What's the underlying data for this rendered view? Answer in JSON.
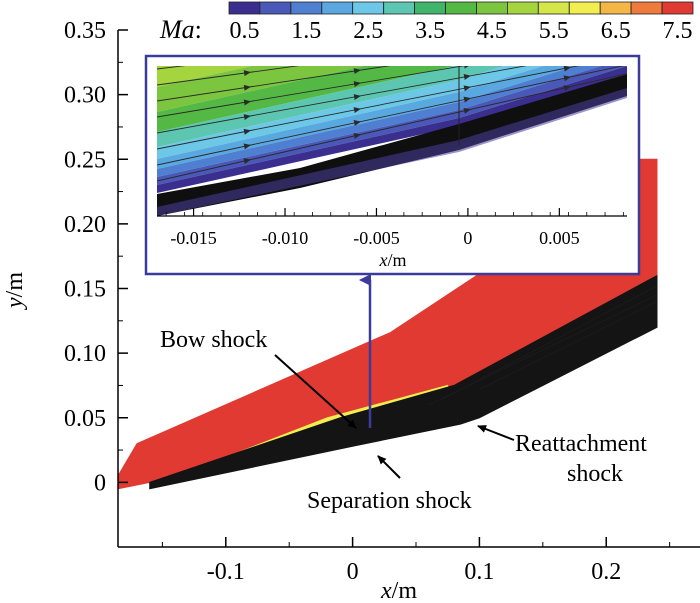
{
  "chart_data": {
    "type": "contour",
    "title": "",
    "colorbar": {
      "label": "Ma",
      "separator": ":",
      "tick_labels": [
        "0.5",
        "1.5",
        "2.5",
        "3.5",
        "4.5",
        "5.5",
        "6.5",
        "7.5"
      ],
      "levels": [
        0.5,
        1.0,
        1.5,
        2.0,
        2.5,
        3.0,
        3.5,
        4.0,
        4.5,
        5.0,
        5.5,
        6.0,
        6.5,
        7.0,
        7.5
      ],
      "colors": [
        "#3a2f8f",
        "#4a58b8",
        "#4f7fd0",
        "#5aa8e0",
        "#6cc8e6",
        "#5cc6b0",
        "#3fb56c",
        "#53b944",
        "#7cc63f",
        "#a4d43e",
        "#d4e64a",
        "#f2ee52",
        "#f4b646",
        "#ee7a3e",
        "#e03a33"
      ]
    },
    "main_plot": {
      "xlabel": "x",
      "xunit": "/m",
      "ylabel": "y",
      "yunit": "/m",
      "xlim": [
        -0.185,
        0.27
      ],
      "ylim": [
        -0.05,
        0.35
      ],
      "xticks": [
        -0.1,
        0,
        0.1,
        0.2
      ],
      "xtick_labels": [
        "-0.1",
        "0",
        "0.1",
        "0.2"
      ],
      "yticks": [
        0,
        0.05,
        0.1,
        0.15,
        0.2,
        0.25,
        0.3,
        0.35
      ],
      "ytick_labels": [
        "0",
        "0.05",
        "0.10",
        "0.15",
        "0.20",
        "0.25",
        "0.30",
        "0.35"
      ],
      "regions": [
        {
          "name": "freestream-region",
          "mach": 7.5,
          "color": "#e03a33",
          "points": [
            [
              -0.185,
              0.005
            ],
            [
              -0.17,
              0.03
            ],
            [
              0.03,
              0.116
            ],
            [
              0.175,
              0.21
            ],
            [
              0.215,
              0.21
            ],
            [
              0.215,
              0.25
            ],
            [
              0.24,
              0.25
            ],
            [
              0.24,
              0.16
            ],
            [
              0.08,
              0.075
            ],
            [
              -0.01,
              0.05
            ],
            [
              -0.16,
              0.0
            ],
            [
              -0.185,
              -0.005
            ]
          ]
        },
        {
          "name": "separation-bubble-region",
          "mach": 5.5,
          "color": "#f2ee52",
          "points": [
            [
              -0.13,
              0.008
            ],
            [
              -0.02,
              0.05
            ],
            [
              0.075,
              0.075
            ],
            [
              0.075,
              0.062
            ],
            [
              0.02,
              0.038
            ],
            [
              -0.13,
              0.004
            ]
          ]
        },
        {
          "name": "reattachment-region",
          "mach": 4.5,
          "color": "#7cc63f",
          "points": [
            [
              0.06,
              0.058
            ],
            [
              0.09,
              0.075
            ],
            [
              0.24,
              0.16
            ],
            [
              0.24,
              0.135
            ],
            [
              0.1,
              0.07
            ]
          ]
        },
        {
          "name": "boundary-layer-region",
          "mach": 0.5,
          "color": "#141414",
          "points": [
            [
              -0.16,
              0.0
            ],
            [
              -0.01,
              0.05
            ],
            [
              0.08,
              0.075
            ],
            [
              0.24,
              0.16
            ],
            [
              0.24,
              0.12
            ],
            [
              0.1,
              0.05
            ],
            [
              0.085,
              0.045
            ],
            [
              0.0,
              0.028
            ],
            [
              -0.16,
              -0.005
            ]
          ]
        }
      ],
      "annotations": [
        {
          "text": "Bow shock",
          "tip": [
            0.055,
            0.066
          ]
        },
        {
          "text": "Separation shock",
          "tip": [
            0.03,
            0.02
          ]
        },
        {
          "text_lines": [
            "Reattachment",
            "shock"
          ],
          "tip": [
            0.085,
            0.05
          ]
        }
      ]
    },
    "inset": {
      "xlabel": "x",
      "xunit": "/m",
      "xlim": [
        -0.017,
        0.0087
      ],
      "xticks": [
        -0.015,
        -0.01,
        -0.005,
        0,
        0.005
      ],
      "xtick_labels": [
        "-0.015",
        "-0.010",
        "-0.005",
        "0",
        "0.005"
      ],
      "streamline_count": 9,
      "mach_bands": [
        5.5,
        5.0,
        4.5,
        4.0,
        3.0,
        2.5,
        2.0,
        1.5,
        1.0,
        0.5
      ]
    }
  }
}
